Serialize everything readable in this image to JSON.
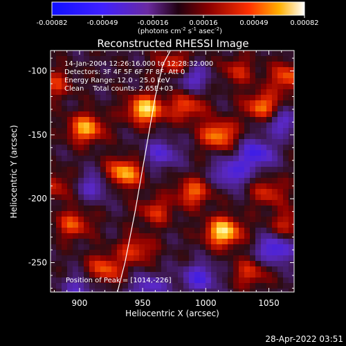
{
  "chart_data": {
    "type": "heatmap",
    "title": "Reconstructed RHESSI Image",
    "xlabel": "Heliocentric X (arcsec)",
    "ylabel": "Heliocentric Y (arcsec)",
    "xlim": [
      877,
      1070
    ],
    "ylim": [
      -273,
      -84
    ],
    "x_ticks": [
      900,
      950,
      1000,
      1050
    ],
    "y_ticks": [
      -100,
      -150,
      -200,
      -250
    ],
    "colorbar": {
      "ticks": [
        "-0.00082",
        "-0.00049",
        "-0.00016",
        "0.00016",
        "0.00049",
        "0.00082"
      ],
      "unit_parts": [
        "(photons cm",
        "-2",
        " s",
        "-1",
        " asec",
        "-2",
        ")"
      ]
    },
    "annotations": [
      "14-Jan-2004 12:26:16.000 to 12:28:32.000",
      "Detectors: 3F 4F 5F 6F 7F 8F, Att 0",
      "Energy Range: 12.0 - 25.0 keV",
      "Clean    Total counts: 2.65E+03"
    ],
    "peak_label": "Position of Peak = [1014,-226]",
    "timestamp": "28-Apr-2022 03:51",
    "limb_x": [
      930,
      936,
      944,
      952,
      960,
      966,
      972
    ],
    "limb_y": [
      -273,
      -250,
      -210,
      -165,
      -120,
      -95,
      -84
    ],
    "blobs": [
      {
        "x": 1014,
        "y": -226,
        "v": 1.0
      },
      {
        "x": 952,
        "y": -130,
        "v": 0.95
      },
      {
        "x": 905,
        "y": -145,
        "v": 0.8
      },
      {
        "x": 935,
        "y": -180,
        "v": 0.85
      },
      {
        "x": 1010,
        "y": -150,
        "v": 0.75
      },
      {
        "x": 985,
        "y": -128,
        "v": 0.55
      },
      {
        "x": 1045,
        "y": -128,
        "v": 0.7
      },
      {
        "x": 1065,
        "y": -105,
        "v": 0.6
      },
      {
        "x": 990,
        "y": -195,
        "v": 0.6
      },
      {
        "x": 895,
        "y": -220,
        "v": 0.55
      },
      {
        "x": 920,
        "y": -255,
        "v": 0.6
      },
      {
        "x": 1050,
        "y": -195,
        "v": 0.45
      },
      {
        "x": 975,
        "y": -95,
        "v": 0.5
      },
      {
        "x": 945,
        "y": -240,
        "v": 0.5
      },
      {
        "x": 1035,
        "y": -258,
        "v": 0.45
      },
      {
        "x": 880,
        "y": -110,
        "v": 0.45
      },
      {
        "x": 960,
        "y": -210,
        "v": 0.45
      },
      {
        "x": 880,
        "y": -190,
        "v": 0.4
      },
      {
        "x": 1065,
        "y": -220,
        "v": 0.4
      },
      {
        "x": 1025,
        "y": -100,
        "v": 0.4
      },
      {
        "x": 1040,
        "y": -165,
        "v": -0.7
      },
      {
        "x": 1020,
        "y": -180,
        "v": -0.6
      },
      {
        "x": 1055,
        "y": -240,
        "v": -0.7
      },
      {
        "x": 965,
        "y": -165,
        "v": -0.5
      },
      {
        "x": 995,
        "y": -262,
        "v": -0.6
      },
      {
        "x": 990,
        "y": -105,
        "v": -0.5
      },
      {
        "x": 912,
        "y": -190,
        "v": -0.45
      },
      {
        "x": 955,
        "y": -270,
        "v": -0.5
      },
      {
        "x": 1060,
        "y": -140,
        "v": -0.5
      },
      {
        "x": 900,
        "y": -270,
        "v": -0.4
      }
    ]
  }
}
